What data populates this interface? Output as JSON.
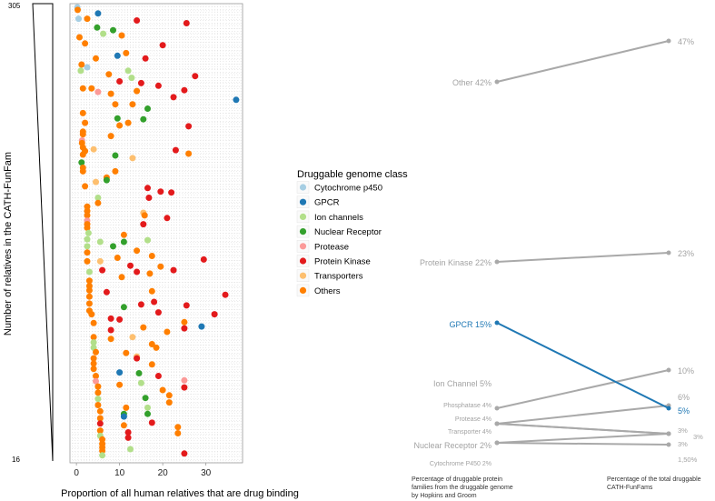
{
  "chart_data": [
    {
      "type": "scatter",
      "title": "",
      "xlabel": "Proportion of all human relatives that are drug binding",
      "ylabel": "Number of relatives in the CATH-FunFam",
      "xlim": [
        -1.5,
        38.5
      ],
      "xticks": [
        "0",
        "10",
        "20",
        "30"
      ],
      "xtick_values": [
        0,
        10,
        20,
        30
      ],
      "y_top_label": "305",
      "y_bottom_label": "16",
      "rows": 74,
      "grid": true,
      "legend": {
        "title": "Druggable genome class",
        "placement": "right",
        "entries": [
          {
            "key": "cyp",
            "label": "Cytochrome p450",
            "color": "#a6cee3"
          },
          {
            "key": "gpcr",
            "label": "GPCR",
            "color": "#1f78b4"
          },
          {
            "key": "ion",
            "label": "Ion channels",
            "color": "#b2df8a"
          },
          {
            "key": "nr",
            "label": "Nuclear Receptor",
            "color": "#33a02c"
          },
          {
            "key": "prot",
            "label": "Protease",
            "color": "#fb9a99"
          },
          {
            "key": "pk",
            "label": "Protein Kinase",
            "color": "#e31a1c"
          },
          {
            "key": "trans",
            "label": "Transporters",
            "color": "#fdbf6f"
          },
          {
            "key": "oth",
            "label": "Others",
            "color": "#ff7f00"
          }
        ]
      },
      "points": [
        {
          "x": 0.2,
          "row": 0,
          "cls": "cyp"
        },
        {
          "x": 0.3,
          "row": 0.3,
          "cls": "oth"
        },
        {
          "x": 5,
          "row": 0.7,
          "cls": "gpcr"
        },
        {
          "x": 0.5,
          "row": 1.3,
          "cls": "cyp"
        },
        {
          "x": 2.5,
          "row": 1.3,
          "cls": "oth"
        },
        {
          "x": 14,
          "row": 1.5,
          "cls": "pk"
        },
        {
          "x": 25.5,
          "row": 1.8,
          "cls": "pk"
        },
        {
          "x": 4.8,
          "row": 2.3,
          "cls": "nr"
        },
        {
          "x": 8.5,
          "row": 2.6,
          "cls": "nr"
        },
        {
          "x": 6.2,
          "row": 3,
          "cls": "ion"
        },
        {
          "x": 0.7,
          "row": 3.4,
          "cls": "oth"
        },
        {
          "x": 10.5,
          "row": 3.2,
          "cls": "oth"
        },
        {
          "x": 2,
          "row": 4.1,
          "cls": "oth"
        },
        {
          "x": 20,
          "row": 4.3,
          "cls": "pk"
        },
        {
          "x": 9.5,
          "row": 5.5,
          "cls": "gpcr"
        },
        {
          "x": 11.5,
          "row": 5.2,
          "cls": "oth"
        },
        {
          "x": 16,
          "row": 5.8,
          "cls": "pk"
        },
        {
          "x": 4.5,
          "row": 5.8,
          "cls": "oth"
        },
        {
          "x": 1.2,
          "row": 6.5,
          "cls": "oth"
        },
        {
          "x": 2.5,
          "row": 6.8,
          "cls": "cyp"
        },
        {
          "x": 1,
          "row": 7.2,
          "cls": "ion"
        },
        {
          "x": 12,
          "row": 7.2,
          "cls": "ion"
        },
        {
          "x": 7.5,
          "row": 7.6,
          "cls": "oth"
        },
        {
          "x": 27.5,
          "row": 7.8,
          "cls": "pk"
        },
        {
          "x": 12.8,
          "row": 8,
          "cls": "ion"
        },
        {
          "x": 10,
          "row": 8.4,
          "cls": "pk"
        },
        {
          "x": 15,
          "row": 8.6,
          "cls": "pk"
        },
        {
          "x": 19,
          "row": 8.9,
          "cls": "pk"
        },
        {
          "x": 1.5,
          "row": 9.2,
          "cls": "oth"
        },
        {
          "x": 3.5,
          "row": 9.2,
          "cls": "oth"
        },
        {
          "x": 5,
          "row": 9.6,
          "cls": "prot"
        },
        {
          "x": 8,
          "row": 9.8,
          "cls": "oth"
        },
        {
          "x": 14,
          "row": 9.5,
          "cls": "oth"
        },
        {
          "x": 25,
          "row": 9.4,
          "cls": "pk"
        },
        {
          "x": 22.5,
          "row": 10.2,
          "cls": "pk"
        },
        {
          "x": 37,
          "row": 10.5,
          "cls": "gpcr"
        },
        {
          "x": 9,
          "row": 11,
          "cls": "oth"
        },
        {
          "x": 13,
          "row": 11,
          "cls": "oth"
        },
        {
          "x": 16.5,
          "row": 11.5,
          "cls": "nr"
        },
        {
          "x": 1.5,
          "row": 12,
          "cls": "oth"
        },
        {
          "x": 9.5,
          "row": 12.6,
          "cls": "nr"
        },
        {
          "x": 15.5,
          "row": 12.7,
          "cls": "nr"
        },
        {
          "x": 2,
          "row": 13.1,
          "cls": "oth"
        },
        {
          "x": 12,
          "row": 13.1,
          "cls": "oth"
        },
        {
          "x": 10,
          "row": 13.4,
          "cls": "oth"
        },
        {
          "x": 26,
          "row": 13.5,
          "cls": "pk"
        },
        {
          "x": 1.5,
          "row": 14.1,
          "cls": "oth"
        },
        {
          "x": 1.5,
          "row": 14.4,
          "cls": "oth"
        },
        {
          "x": 8,
          "row": 14.6,
          "cls": "oth"
        },
        {
          "x": 1.3,
          "row": 15.1,
          "cls": "prot"
        },
        {
          "x": 1.3,
          "row": 15.4,
          "cls": "oth"
        },
        {
          "x": 1.5,
          "row": 15.9,
          "cls": "oth"
        },
        {
          "x": 2,
          "row": 16.3,
          "cls": "oth"
        },
        {
          "x": 4,
          "row": 16.1,
          "cls": "trans"
        },
        {
          "x": 23,
          "row": 16.2,
          "cls": "pk"
        },
        {
          "x": 9,
          "row": 16.8,
          "cls": "nr"
        },
        {
          "x": 1.5,
          "row": 16.7,
          "cls": "oth"
        },
        {
          "x": 26,
          "row": 16.6,
          "cls": "oth"
        },
        {
          "x": 13,
          "row": 17.1,
          "cls": "trans"
        },
        {
          "x": 1.2,
          "row": 17.6,
          "cls": "nr"
        },
        {
          "x": 1.5,
          "row": 18.2,
          "cls": "oth"
        },
        {
          "x": 9,
          "row": 18.6,
          "cls": "oth"
        },
        {
          "x": 1.5,
          "row": 18.6,
          "cls": "oth"
        },
        {
          "x": 7,
          "row": 19.3,
          "cls": "oth"
        },
        {
          "x": 7,
          "row": 19.6,
          "cls": "nr"
        },
        {
          "x": 4.5,
          "row": 19.8,
          "cls": "trans"
        },
        {
          "x": 2,
          "row": 20.3,
          "cls": "oth"
        },
        {
          "x": 16.5,
          "row": 20.5,
          "cls": "pk"
        },
        {
          "x": 19.5,
          "row": 20.9,
          "cls": "pk"
        },
        {
          "x": 22,
          "row": 21,
          "cls": "pk"
        },
        {
          "x": 16.8,
          "row": 21.6,
          "cls": "pk"
        },
        {
          "x": 5,
          "row": 21.6,
          "cls": "ion"
        },
        {
          "x": 2.5,
          "row": 22.6,
          "cls": "oth"
        },
        {
          "x": 5,
          "row": 22.2,
          "cls": "oth"
        },
        {
          "x": 2.5,
          "row": 23.1,
          "cls": "oth"
        },
        {
          "x": 15.5,
          "row": 23.3,
          "cls": "trans"
        },
        {
          "x": 15.8,
          "row": 23.6,
          "cls": "oth"
        },
        {
          "x": 2.5,
          "row": 23.6,
          "cls": "oth"
        },
        {
          "x": 21,
          "row": 23.9,
          "cls": "pk"
        },
        {
          "x": 2.5,
          "row": 24.2,
          "cls": "prot"
        },
        {
          "x": 2.5,
          "row": 24.6,
          "cls": "oth"
        },
        {
          "x": 15.5,
          "row": 24.6,
          "cls": "pk"
        },
        {
          "x": 2.5,
          "row": 25,
          "cls": "oth"
        },
        {
          "x": 2.8,
          "row": 25.6,
          "cls": "ion"
        },
        {
          "x": 11,
          "row": 25.8,
          "cls": "oth"
        },
        {
          "x": 2.5,
          "row": 26.3,
          "cls": "ion"
        },
        {
          "x": 5.5,
          "row": 26.6,
          "cls": "ion"
        },
        {
          "x": 11,
          "row": 26.6,
          "cls": "nr"
        },
        {
          "x": 16.5,
          "row": 26.4,
          "cls": "ion"
        },
        {
          "x": 2.5,
          "row": 27.1,
          "cls": "ion"
        },
        {
          "x": 8.5,
          "row": 27.1,
          "cls": "nr"
        },
        {
          "x": 14,
          "row": 27.6,
          "cls": "oth"
        },
        {
          "x": 2.5,
          "row": 27.8,
          "cls": "oth"
        },
        {
          "x": 17.5,
          "row": 28.2,
          "cls": "oth"
        },
        {
          "x": 2.5,
          "row": 28.8,
          "cls": "oth"
        },
        {
          "x": 9.5,
          "row": 28.4,
          "cls": "oth"
        },
        {
          "x": 5.5,
          "row": 28.8,
          "cls": "trans"
        },
        {
          "x": 29.5,
          "row": 28.6,
          "cls": "pk"
        },
        {
          "x": 12.5,
          "row": 29.3,
          "cls": "pk"
        },
        {
          "x": 19.5,
          "row": 29.4,
          "cls": "oth"
        },
        {
          "x": 6,
          "row": 29.8,
          "cls": "pk"
        },
        {
          "x": 3,
          "row": 30,
          "cls": "ion"
        },
        {
          "x": 22.5,
          "row": 29.8,
          "cls": "pk"
        },
        {
          "x": 14,
          "row": 30,
          "cls": "pk"
        },
        {
          "x": 17,
          "row": 30.2,
          "cls": "oth"
        },
        {
          "x": 10.5,
          "row": 30.6,
          "cls": "oth"
        },
        {
          "x": 3,
          "row": 31,
          "cls": "oth"
        },
        {
          "x": 3,
          "row": 31.6,
          "cls": "oth"
        },
        {
          "x": 3,
          "row": 32.1,
          "cls": "oth"
        },
        {
          "x": 7,
          "row": 32.3,
          "cls": "pk"
        },
        {
          "x": 17.5,
          "row": 32.2,
          "cls": "oth"
        },
        {
          "x": 3,
          "row": 32.8,
          "cls": "oth"
        },
        {
          "x": 34.5,
          "row": 32.6,
          "cls": "pk"
        },
        {
          "x": 18,
          "row": 33.4,
          "cls": "pk"
        },
        {
          "x": 3,
          "row": 33.6,
          "cls": "oth"
        },
        {
          "x": 15,
          "row": 33.7,
          "cls": "pk"
        },
        {
          "x": 11,
          "row": 34,
          "cls": "nr"
        },
        {
          "x": 25.5,
          "row": 33.8,
          "cls": "pk"
        },
        {
          "x": 3,
          "row": 34.4,
          "cls": "oth"
        },
        {
          "x": 19,
          "row": 34.6,
          "cls": "pk"
        },
        {
          "x": 3.5,
          "row": 34.8,
          "cls": "oth"
        },
        {
          "x": 32,
          "row": 34.8,
          "cls": "pk"
        },
        {
          "x": 8,
          "row": 35.3,
          "cls": "pk"
        },
        {
          "x": 10,
          "row": 35.4,
          "cls": "pk"
        },
        {
          "x": 4,
          "row": 35.8,
          "cls": "oth"
        },
        {
          "x": 25,
          "row": 35.7,
          "cls": "oth"
        },
        {
          "x": 29,
          "row": 36.2,
          "cls": "gpcr"
        },
        {
          "x": 15.5,
          "row": 36.3,
          "cls": "oth"
        },
        {
          "x": 8,
          "row": 36.6,
          "cls": "pk"
        },
        {
          "x": 25,
          "row": 36.4,
          "cls": "pk"
        },
        {
          "x": 21,
          "row": 36.8,
          "cls": "oth"
        },
        {
          "x": 4,
          "row": 37.4,
          "cls": "oth"
        },
        {
          "x": 13,
          "row": 37.4,
          "cls": "trans"
        },
        {
          "x": 8,
          "row": 37.6,
          "cls": "oth"
        },
        {
          "x": 4,
          "row": 38,
          "cls": "ion"
        },
        {
          "x": 17.5,
          "row": 38.2,
          "cls": "oth"
        },
        {
          "x": 4,
          "row": 38.6,
          "cls": "ion"
        },
        {
          "x": 18.5,
          "row": 38.6,
          "cls": "oth"
        },
        {
          "x": 4.5,
          "row": 39.1,
          "cls": "oth"
        },
        {
          "x": 11.5,
          "row": 39.2,
          "cls": "oth"
        },
        {
          "x": 14,
          "row": 39.6,
          "cls": "trans"
        },
        {
          "x": 4,
          "row": 39.8,
          "cls": "oth"
        },
        {
          "x": 14,
          "row": 39.8,
          "cls": "pk"
        },
        {
          "x": 4,
          "row": 40.4,
          "cls": "oth"
        },
        {
          "x": 17.5,
          "row": 40.5,
          "cls": "oth"
        },
        {
          "x": 4,
          "row": 41,
          "cls": "oth"
        },
        {
          "x": 10,
          "row": 41.4,
          "cls": "gpcr"
        },
        {
          "x": 14.5,
          "row": 41.5,
          "cls": "nr"
        },
        {
          "x": 4.5,
          "row": 41.8,
          "cls": "oth"
        },
        {
          "x": 19,
          "row": 41.8,
          "cls": "pk"
        },
        {
          "x": 25,
          "row": 42.3,
          "cls": "prot"
        },
        {
          "x": 4.5,
          "row": 42.4,
          "cls": "prot"
        },
        {
          "x": 10,
          "row": 42.8,
          "cls": "oth"
        },
        {
          "x": 15,
          "row": 42.6,
          "cls": "ion"
        },
        {
          "x": 5,
          "row": 43,
          "cls": "oth"
        },
        {
          "x": 25,
          "row": 43.1,
          "cls": "pk"
        },
        {
          "x": 20,
          "row": 43.4,
          "cls": "oth"
        },
        {
          "x": 5,
          "row": 43.7,
          "cls": "oth"
        },
        {
          "x": 21.5,
          "row": 44,
          "cls": "oth"
        },
        {
          "x": 5,
          "row": 44.4,
          "cls": "ion"
        },
        {
          "x": 16,
          "row": 44.3,
          "cls": "nr"
        },
        {
          "x": 5,
          "row": 45.1,
          "cls": "oth"
        },
        {
          "x": 21.5,
          "row": 44.8,
          "cls": "oth"
        },
        {
          "x": 11.5,
          "row": 45.4,
          "cls": "oth"
        },
        {
          "x": 16.5,
          "row": 45.4,
          "cls": "ion"
        },
        {
          "x": 5.5,
          "row": 45.8,
          "cls": "oth"
        },
        {
          "x": 11,
          "row": 46.1,
          "cls": "nr"
        },
        {
          "x": 16.5,
          "row": 46.1,
          "cls": "nr"
        },
        {
          "x": 11,
          "row": 46.4,
          "cls": "gpcr"
        },
        {
          "x": 5.5,
          "row": 46.6,
          "cls": "oth"
        },
        {
          "x": 5.5,
          "row": 47.2,
          "cls": "pk"
        },
        {
          "x": 17.5,
          "row": 47.1,
          "cls": "pk"
        },
        {
          "x": 11,
          "row": 47.4,
          "cls": "oth"
        },
        {
          "x": 23.5,
          "row": 47.6,
          "cls": "oth"
        },
        {
          "x": 5.5,
          "row": 48,
          "cls": "oth"
        },
        {
          "x": 12,
          "row": 48.2,
          "cls": "pk"
        },
        {
          "x": 23.5,
          "row": 48.3,
          "cls": "oth"
        },
        {
          "x": 5.5,
          "row": 48.6,
          "cls": "ion"
        },
        {
          "x": 6,
          "row": 49,
          "cls": "oth"
        },
        {
          "x": 12,
          "row": 48.8,
          "cls": "pk"
        },
        {
          "x": 6,
          "row": 49.5,
          "cls": "oth"
        },
        {
          "x": 6,
          "row": 49.9,
          "cls": "oth"
        },
        {
          "x": 12.5,
          "row": 50.1,
          "cls": "ion"
        },
        {
          "x": 6,
          "row": 50.3,
          "cls": "oth"
        },
        {
          "x": 25,
          "row": 50.6,
          "cls": "pk"
        },
        {
          "x": 6,
          "row": 50.8,
          "cls": "ion"
        }
      ]
    },
    {
      "type": "slope",
      "left_caption": "Percentage of druggable protein families from the druggable genome by Hopkins and Groom",
      "right_caption": "Percentage of the total druggable CATH-FunFams",
      "series": [
        {
          "name": "Other",
          "left_label": "Other 42%",
          "right_label": "47%",
          "left": 42,
          "right": 47,
          "highlight": false
        },
        {
          "name": "Protein Kinase",
          "left_label": "Protein Kinase 22%",
          "right_label": "23%",
          "left": 22,
          "right": 23,
          "highlight": false
        },
        {
          "name": "GPCR",
          "left_label": "GPCR 15%",
          "right_label": "5%",
          "left": 15,
          "right": 5,
          "highlight": true
        },
        {
          "name": "Ion Channel",
          "left_label": "Ion Channel 5%",
          "right_label": "10%",
          "left": 5,
          "right": 10,
          "highlight": false
        },
        {
          "name": "Phosphatase",
          "left_label": "Phosphatase  4%",
          "right_label": "6%",
          "left": 4,
          "right": 6,
          "highlight": false
        },
        {
          "name": "Protease",
          "left_label": "Protease  4%",
          "right_label": "3%",
          "left": 4,
          "right": 3,
          "highlight": false
        },
        {
          "name": "Transporter",
          "left_label": "Transporter  4%",
          "right_label": "3%",
          "left": 4,
          "right": 3,
          "highlight": false
        },
        {
          "name": "Nuclear Receptor",
          "left_label": "Nuclear Receptor 2%",
          "right_label": "3%",
          "left": 2,
          "right": 3,
          "highlight": false
        },
        {
          "name": "Cytochrome P450",
          "left_label": "Cytochrome P450  2%",
          "right_label": "1,50%",
          "left": 2,
          "right": 1.5,
          "highlight": false
        }
      ],
      "colors": {
        "line": "#a9a9a9",
        "label": "#a3a3a3",
        "highlight": "#1f78b4",
        "caption": "#333333"
      }
    }
  ]
}
